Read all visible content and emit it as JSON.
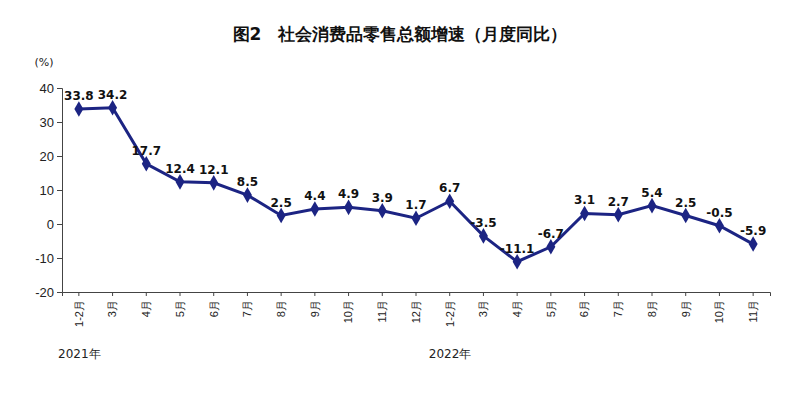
{
  "chart_data": {
    "type": "line",
    "title": "图2　社会消费品零售总额增速（月度同比）",
    "y_label": "(%)",
    "categories": [
      "1-2月",
      "3月",
      "4月",
      "5月",
      "6月",
      "7月",
      "8月",
      "9月",
      "10月",
      "11月",
      "12月",
      "1-2月",
      "3月",
      "4月",
      "5月",
      "6月",
      "7月",
      "8月",
      "9月",
      "10月",
      "11月"
    ],
    "values": [
      33.8,
      34.2,
      17.7,
      12.4,
      12.1,
      8.5,
      2.5,
      4.4,
      4.9,
      3.9,
      1.7,
      6.7,
      -3.5,
      -11.1,
      -6.7,
      3.1,
      2.7,
      5.4,
      2.5,
      -0.5,
      -5.9
    ],
    "annotations": [
      {
        "text": "2021年",
        "category": 0
      },
      {
        "text": "2022年",
        "category": 11
      }
    ],
    "color": "#1c2483",
    "marker": "diamond",
    "line_style": "solid",
    "data_labels": true,
    "grid": false,
    "ylim": [
      -20,
      40
    ],
    "yticks": [
      -20,
      -10,
      0,
      10,
      20,
      30,
      40
    ]
  }
}
